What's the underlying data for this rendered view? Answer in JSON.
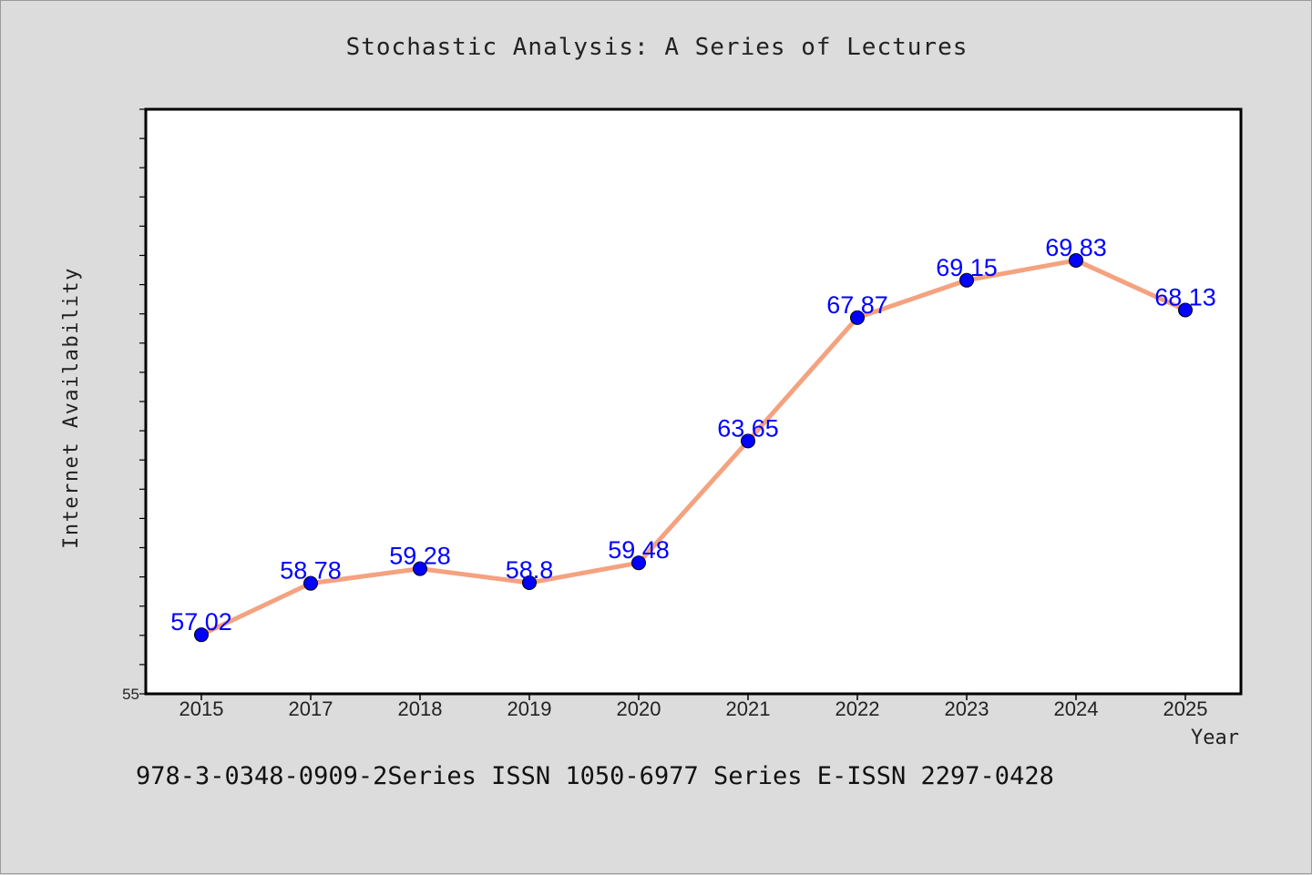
{
  "chart_data": {
    "type": "line",
    "title": "Stochastic Analysis: A Series of Lectures",
    "xlabel": "Year",
    "ylabel": "Internet Availability",
    "categories": [
      "2015",
      "2017",
      "2018",
      "2019",
      "2020",
      "2021",
      "2022",
      "2023",
      "2024",
      "2025"
    ],
    "series": [
      {
        "values": [
          57.02,
          58.78,
          59.28,
          58.8,
          59.48,
          63.65,
          67.87,
          69.15,
          69.83,
          68.13
        ],
        "data_labels": [
          "57.02",
          "58.78",
          "59.28",
          "58.8",
          "59.48",
          "63.65",
          "67.87",
          "69.15",
          "69.83",
          "68.13"
        ],
        "line_color": "#f4a27f",
        "marker_color": "#0000ff",
        "label_color": "#0000ff"
      }
    ],
    "ylim": [
      55,
      75
    ],
    "ytick_labels": [
      "55"
    ],
    "grid": false,
    "legend": "none"
  },
  "footer": {
    "text": "978-3-0348-0909-2Series ISSN 1050-6977 Series E-ISSN 2297-0428"
  },
  "colors": {
    "background": "#dcdcdc",
    "plot_background": "#ffffff",
    "axis": "#000000"
  }
}
